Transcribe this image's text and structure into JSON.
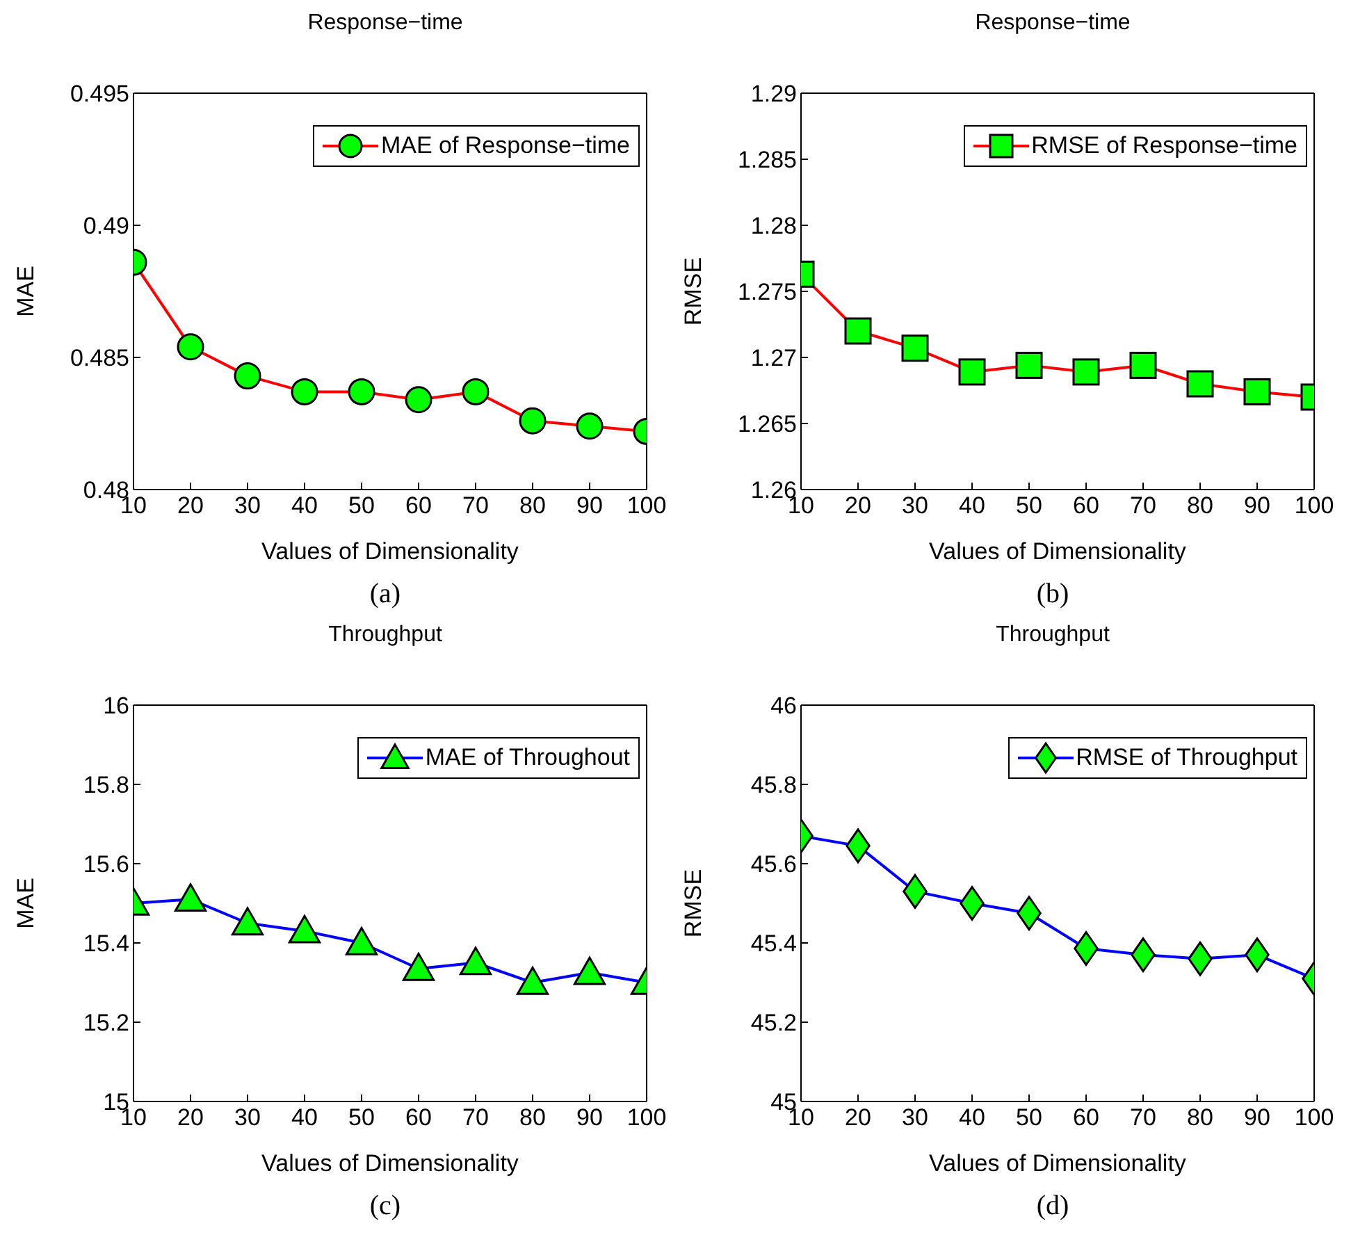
{
  "chart_data": [
    {
      "type": "line",
      "title": "Response−time",
      "xlabel": "Values of Dimensionality",
      "ylabel": "MAE",
      "x": [
        10,
        20,
        30,
        40,
        50,
        60,
        70,
        80,
        90,
        100
      ],
      "series": [
        {
          "name": "MAE of Response−time",
          "color": "#ff0000",
          "values": [
            0.4886,
            0.4854,
            0.4843,
            0.4837,
            0.4837,
            0.4834,
            0.4837,
            0.4826,
            0.4824,
            0.4822
          ]
        }
      ],
      "xlim": [
        10,
        100
      ],
      "xticks": [
        10,
        20,
        30,
        40,
        50,
        60,
        70,
        80,
        90,
        100
      ],
      "ylim": [
        0.48,
        0.495
      ],
      "yticks": [
        0.48,
        0.485,
        0.49,
        0.495
      ],
      "marker": "circle",
      "legend": "top right",
      "grid": false,
      "annotations": [
        "(a)"
      ]
    },
    {
      "type": "line",
      "title": "Response−time",
      "xlabel": "Values of Dimensionality",
      "ylabel": "RMSE",
      "x": [
        10,
        20,
        30,
        40,
        50,
        60,
        70,
        80,
        90,
        100
      ],
      "series": [
        {
          "name": "RMSE of Response−time",
          "color": "#ff0000",
          "values": [
            1.2763,
            1.272,
            1.2707,
            1.2689,
            1.2694,
            1.2689,
            1.2694,
            1.268,
            1.2674,
            1.267
          ]
        }
      ],
      "xlim": [
        10,
        100
      ],
      "xticks": [
        10,
        20,
        30,
        40,
        50,
        60,
        70,
        80,
        90,
        100
      ],
      "ylim": [
        1.26,
        1.29
      ],
      "yticks": [
        1.26,
        1.265,
        1.27,
        1.275,
        1.28,
        1.285,
        1.29
      ],
      "marker": "square",
      "legend": "top right",
      "grid": false,
      "annotations": [
        "(b)"
      ]
    },
    {
      "type": "line",
      "title": "Throughput",
      "xlabel": "Values of Dimensionality",
      "ylabel": "MAE",
      "x": [
        10,
        20,
        30,
        40,
        50,
        60,
        70,
        80,
        90,
        100
      ],
      "series": [
        {
          "name": "MAE of Throughout",
          "color": "#0000ff",
          "values": [
            15.5,
            15.51,
            15.45,
            15.43,
            15.4,
            15.335,
            15.35,
            15.3,
            15.325,
            15.3
          ]
        }
      ],
      "xlim": [
        10,
        100
      ],
      "xticks": [
        10,
        20,
        30,
        40,
        50,
        60,
        70,
        80,
        90,
        100
      ],
      "ylim": [
        15,
        16
      ],
      "yticks": [
        15,
        15.2,
        15.4,
        15.6,
        15.8,
        16
      ],
      "marker": "triangle",
      "legend": "top right",
      "grid": false,
      "annotations": [
        "(c)"
      ]
    },
    {
      "type": "line",
      "title": "Throughput",
      "xlabel": "Values of Dimensionality",
      "ylabel": "RMSE",
      "x": [
        10,
        20,
        30,
        40,
        50,
        60,
        70,
        80,
        90,
        100
      ],
      "series": [
        {
          "name": "RMSE of Throughput",
          "color": "#0000ff",
          "values": [
            45.67,
            45.645,
            45.53,
            45.5,
            45.475,
            45.386,
            45.37,
            45.36,
            45.37,
            45.31
          ]
        }
      ],
      "xlim": [
        10,
        100
      ],
      "xticks": [
        10,
        20,
        30,
        40,
        50,
        60,
        70,
        80,
        90,
        100
      ],
      "ylim": [
        45,
        46
      ],
      "yticks": [
        45,
        45.2,
        45.4,
        45.6,
        45.8,
        46
      ],
      "marker": "diamond",
      "legend": "top right",
      "grid": false,
      "annotations": [
        "(d)"
      ]
    }
  ]
}
